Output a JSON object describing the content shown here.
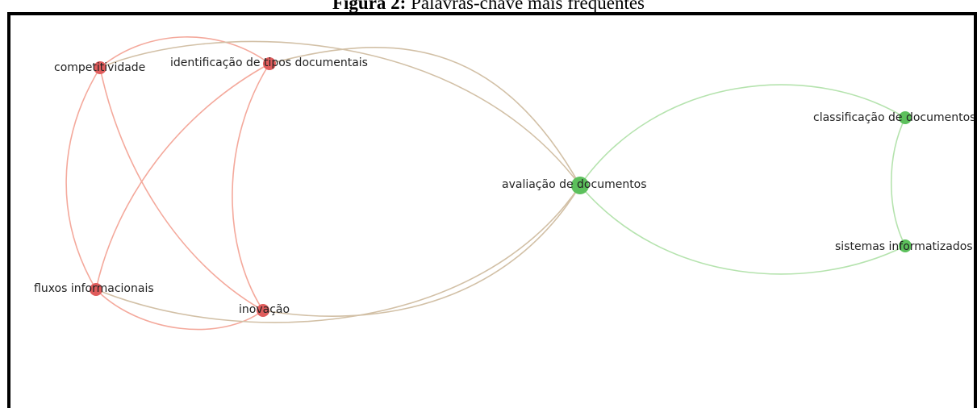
{
  "figure": {
    "caption_label": "Figura 2:",
    "caption_text": "Palavras-chave mais frequentes"
  },
  "colors": {
    "cluster_red": "#e05c5c",
    "cluster_green": "#5cc05c",
    "edge_red": "#f4a99c",
    "edge_green": "#b5e3ae",
    "edge_mixed": "#d2c0a6"
  },
  "nodes": [
    {
      "id": "competitividade",
      "label": "competitividade",
      "cluster": "red"
    },
    {
      "id": "identificacao",
      "label": "identificação de tipos documentais",
      "cluster": "red"
    },
    {
      "id": "fluxos",
      "label": "fluxos informacionais",
      "cluster": "red"
    },
    {
      "id": "inovacao",
      "label": "inovação",
      "cluster": "red"
    },
    {
      "id": "avaliacao",
      "label": "avaliação de documentos",
      "cluster": "green"
    },
    {
      "id": "classificacao",
      "label": "classificação de documentos",
      "cluster": "green"
    },
    {
      "id": "sistemas",
      "label": "sistemas informatizados",
      "cluster": "green"
    }
  ]
}
